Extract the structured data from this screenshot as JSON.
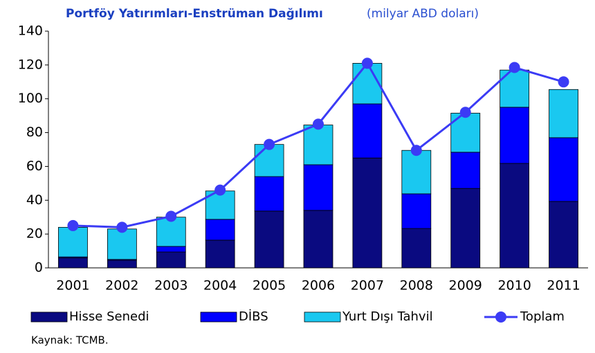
{
  "chart_data": {
    "type": "bar",
    "stacked": true,
    "title": "Portföy Yatırımları-Enstrüman Dağılımı",
    "subtitle": "(milyar ABD doları)",
    "source": "Kaynak: TCMB.",
    "categories": [
      "2001",
      "2002",
      "2003",
      "2004",
      "2005",
      "2006",
      "2007",
      "2008",
      "2009",
      "2010",
      "2011"
    ],
    "series": [
      {
        "name": "Hisse Senedi",
        "color": "#0a0a80",
        "values": [
          6,
          4.5,
          9.4,
          16.4,
          33.6,
          34,
          65,
          23.3,
          47,
          61.8,
          39.3
        ]
      },
      {
        "name": "DİBS",
        "color": "#0000ff",
        "values": [
          0.5,
          0.5,
          3.3,
          12.3,
          20.4,
          27,
          32,
          20.5,
          21.4,
          33.2,
          37.7
        ]
      },
      {
        "name": "Yurt Dışı Tahvil",
        "color": "#1ac8f0",
        "values": [
          17.5,
          18,
          17.3,
          16.8,
          19,
          23.5,
          24,
          25.7,
          23.1,
          22,
          28.5
        ]
      },
      {
        "name": "Toplam",
        "type": "line",
        "color": "#3b3bf5",
        "values": [
          25,
          24,
          30.5,
          46,
          73,
          85,
          121,
          69.5,
          92,
          118.5,
          110
        ]
      }
    ],
    "ylim": [
      0,
      140
    ],
    "yticks": [
      0,
      20,
      40,
      60,
      80,
      100,
      120,
      140
    ],
    "grid": false,
    "legend": "bottom"
  }
}
